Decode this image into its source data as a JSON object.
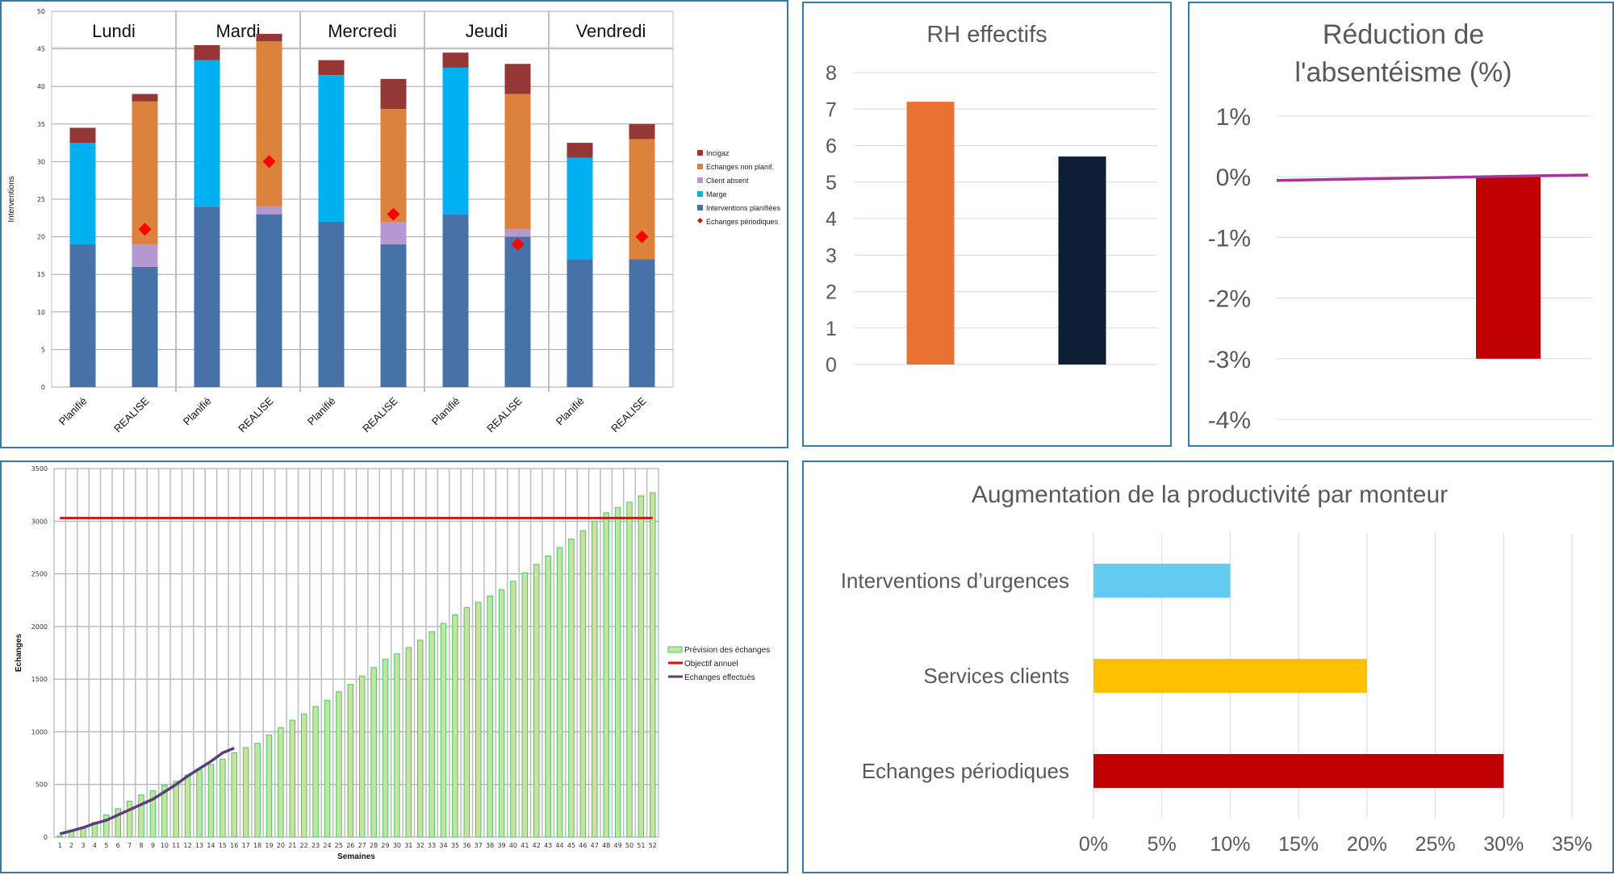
{
  "chart_data": [
    {
      "id": "interventions",
      "type": "bar",
      "stacked": true,
      "title": "",
      "ylabel": "Interventions",
      "xlabel": "",
      "ylim": [
        0,
        50
      ],
      "yticks": [
        0,
        5,
        10,
        15,
        20,
        25,
        30,
        35,
        40,
        45,
        50
      ],
      "grid": true,
      "legend_position": "right",
      "groups": [
        "Lundi",
        "Mardi",
        "Mercredi",
        "Jeudi",
        "Vendredi"
      ],
      "categories": [
        "Planifié",
        "REALISE",
        "Planifié",
        "REALISE",
        "Planifié",
        "REALISE",
        "Planifié",
        "REALISE",
        "Planifié",
        "REALISE"
      ],
      "series": [
        {
          "name": "Interventions planifiées",
          "color": "#4672a8",
          "values": [
            19,
            16,
            24,
            23,
            22,
            19,
            23,
            20,
            17,
            17
          ]
        },
        {
          "name": "Marge",
          "color": "#00b0f0",
          "values": [
            13.5,
            0,
            19.5,
            0,
            19.5,
            0,
            19.5,
            0,
            13.5,
            0
          ]
        },
        {
          "name": "Client absent",
          "color": "#b598cf",
          "values": [
            0,
            3,
            0,
            1,
            0,
            3,
            0,
            1,
            0,
            0
          ]
        },
        {
          "name": "Echanges non planif.",
          "color": "#dc823c",
          "values": [
            0,
            19,
            0,
            22,
            0,
            15,
            0,
            18,
            0,
            16
          ]
        },
        {
          "name": "Incigaz",
          "color": "#953735",
          "values": [
            2,
            1,
            2,
            1,
            2,
            4,
            2,
            4,
            2,
            2
          ]
        }
      ],
      "markers": {
        "name": "Echanges périodiques",
        "color": "#ff0000",
        "values": [
          null,
          21,
          null,
          30,
          null,
          23,
          null,
          19,
          null,
          20
        ]
      },
      "legend": [
        "Incigaz",
        "Echanges non planif.",
        "Client absent",
        "Marge",
        "Interventions planifiées",
        "Echanges périodiques"
      ]
    },
    {
      "id": "rh",
      "type": "bar",
      "title": "RH effectifs",
      "categories": [
        "",
        ""
      ],
      "values": [
        7.2,
        5.7
      ],
      "colors": [
        "#e97132",
        "#0e1f35"
      ],
      "ylim": [
        0,
        8
      ],
      "yticks": [
        "0",
        "1",
        "2",
        "3",
        "4",
        "5",
        "6",
        "7",
        "8"
      ],
      "grid": true
    },
    {
      "id": "absenteisme",
      "type": "bar",
      "title_lines": [
        "Réduction de",
        "l'absentéisme (%)"
      ],
      "categories": [
        "",
        ""
      ],
      "values": [
        0,
        -3
      ],
      "color": "#c00000",
      "line": {
        "color": "#a5359c",
        "values": [
          -0.06,
          0.03
        ]
      },
      "ylim": [
        -4,
        1
      ],
      "yticks": [
        "1%",
        "0%",
        "-1%",
        "-2%",
        "-3%",
        "-4%"
      ],
      "ytick_values": [
        1,
        0,
        -1,
        -2,
        -3,
        -4
      ],
      "grid": true
    },
    {
      "id": "echanges",
      "type": "bar",
      "title": "",
      "xlabel": "Semaines",
      "ylabel": "Echanges",
      "ylim": [
        0,
        3500
      ],
      "yticks": [
        0,
        500,
        1000,
        1500,
        2000,
        2500,
        3000,
        3500
      ],
      "grid": true,
      "legend_position": "right",
      "x": [
        1,
        2,
        3,
        4,
        5,
        6,
        7,
        8,
        9,
        10,
        11,
        12,
        13,
        14,
        15,
        16,
        17,
        18,
        19,
        20,
        21,
        22,
        23,
        24,
        25,
        26,
        27,
        28,
        29,
        30,
        31,
        32,
        33,
        34,
        35,
        36,
        37,
        38,
        39,
        40,
        41,
        42,
        43,
        44,
        45,
        46,
        47,
        48,
        49,
        50,
        51,
        52
      ],
      "series": [
        {
          "name": "Prévision des échanges",
          "kind": "bar",
          "color": "#c4e59f",
          "stroke": "#4fc26a",
          "values": [
            10,
            50,
            90,
            140,
            210,
            270,
            340,
            400,
            440,
            490,
            530,
            590,
            640,
            690,
            740,
            800,
            850,
            890,
            970,
            1040,
            1110,
            1170,
            1240,
            1300,
            1380,
            1450,
            1530,
            1610,
            1690,
            1740,
            1800,
            1870,
            1950,
            2030,
            2110,
            2180,
            2230,
            2290,
            2350,
            2430,
            2510,
            2590,
            2670,
            2750,
            2830,
            2910,
            3000,
            3080,
            3130,
            3180,
            3240,
            3270
          ]
        },
        {
          "name": "Objectif annuel",
          "kind": "line",
          "color": "#ff0000",
          "value": 3030
        },
        {
          "name": "Echanges effectués",
          "kind": "line",
          "color": "#5a3f7a",
          "values": [
            30,
            60,
            90,
            130,
            160,
            210,
            260,
            310,
            360,
            430,
            500,
            580,
            650,
            720,
            800,
            845
          ]
        }
      ]
    },
    {
      "id": "productivite",
      "type": "bar",
      "orientation": "horizontal",
      "title": "Augmentation de la productivité par monteur",
      "categories": [
        "Interventions d’urgences",
        "Services clients",
        "Echanges périodiques"
      ],
      "values": [
        10,
        20,
        30
      ],
      "colors": [
        "#61cbf3",
        "#ffc000",
        "#c00000"
      ],
      "xlim": [
        0,
        35
      ],
      "xticks": [
        "0%",
        "5%",
        "10%",
        "15%",
        "20%",
        "25%",
        "30%",
        "35%"
      ],
      "grid": true
    }
  ]
}
